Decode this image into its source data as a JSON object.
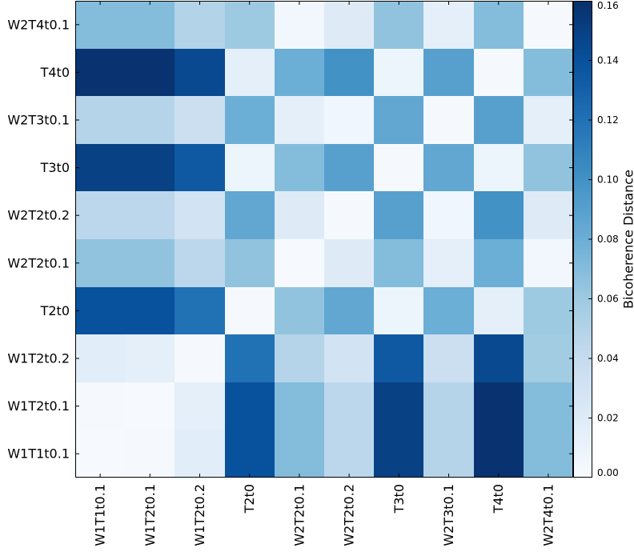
{
  "chart_data": {
    "type": "heatmap",
    "title": "",
    "xlabel": "",
    "ylabel": "",
    "x_categories": [
      "W1T1t0.1",
      "W1T2t0.1",
      "W1T2t0.2",
      "T2t0",
      "W2T2t0.1",
      "W2T2t0.2",
      "T3t0",
      "W2T3t0.1",
      "T4t0",
      "W2T4t0.1"
    ],
    "y_categories": [
      "W1T1t0.1",
      "W1T2t0.1",
      "W1T2t0.2",
      "T2t0",
      "W2T2t0.1",
      "W2T2t0.2",
      "T3t0",
      "W2T3t0.1",
      "T4t0",
      "W2T4t0.1"
    ],
    "values": [
      [
        0.001,
        0.002,
        0.018,
        0.14,
        0.07,
        0.045,
        0.15,
        0.048,
        0.158,
        0.07
      ],
      [
        0.002,
        0.001,
        0.015,
        0.14,
        0.07,
        0.045,
        0.15,
        0.048,
        0.158,
        0.07
      ],
      [
        0.018,
        0.015,
        0.002,
        0.12,
        0.048,
        0.03,
        0.135,
        0.035,
        0.145,
        0.058
      ],
      [
        0.14,
        0.14,
        0.12,
        0.002,
        0.065,
        0.085,
        0.008,
        0.08,
        0.015,
        0.06
      ],
      [
        0.065,
        0.065,
        0.045,
        0.065,
        0.001,
        0.02,
        0.07,
        0.015,
        0.08,
        0.005
      ],
      [
        0.045,
        0.045,
        0.03,
        0.085,
        0.02,
        0.002,
        0.09,
        0.006,
        0.1,
        0.02
      ],
      [
        0.15,
        0.15,
        0.135,
        0.008,
        0.07,
        0.09,
        0.002,
        0.085,
        0.008,
        0.065
      ],
      [
        0.048,
        0.048,
        0.035,
        0.08,
        0.015,
        0.006,
        0.085,
        0.002,
        0.09,
        0.015
      ],
      [
        0.158,
        0.158,
        0.145,
        0.015,
        0.08,
        0.1,
        0.008,
        0.09,
        0.002,
        0.07
      ],
      [
        0.07,
        0.07,
        0.05,
        0.06,
        0.005,
        0.02,
        0.065,
        0.015,
        0.07,
        0.002
      ]
    ],
    "colorbar": {
      "label": "Bicoherence Distance",
      "min": 0.0,
      "max": 0.16,
      "ticks": [
        "0.00",
        "0.02",
        "0.04",
        "0.06",
        "0.08",
        "0.10",
        "0.12",
        "0.14",
        "0.16"
      ],
      "colormap": "Blues",
      "stops": [
        "#f7fbff",
        "#deebf7",
        "#c6dbef",
        "#9ecae1",
        "#6baed6",
        "#4292c6",
        "#2171b5",
        "#08519c",
        "#08306b"
      ]
    },
    "grid": false,
    "x_tick_rotation": "vertical"
  }
}
